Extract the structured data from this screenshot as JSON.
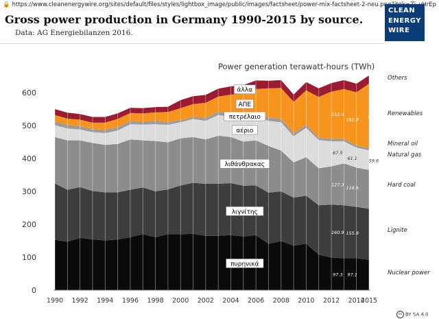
{
  "url": "https://www.cleanenergywire.org/sites/default/files/styles/lightbox_image/public/images/factsheet/power-mix-factsheet-2-neu.png?itok=Zj_yHrEp",
  "title": "Gross power production in Germany 1990-2015 by source.",
  "subtitle": "Data: AG Energiebilanzen 2016.",
  "logo": [
    "CLEAN",
    "ENERGY",
    "WIRE"
  ],
  "license": "BY SA 4.0",
  "license_icon": "cc",
  "chart_data": {
    "type": "area",
    "stacked": true,
    "chart_title": "Power generation terawatt-hours (TWh)",
    "x": [
      1990,
      1991,
      1992,
      1993,
      1994,
      1995,
      1996,
      1997,
      1998,
      1999,
      2000,
      2001,
      2002,
      2003,
      2004,
      2005,
      2006,
      2007,
      2008,
      2009,
      2010,
      2011,
      2012,
      2013,
      2014,
      2015
    ],
    "x_ticks": [
      "1990",
      "1992",
      "1994",
      "1996",
      "1998",
      "2000",
      "2002",
      "2004",
      "2006",
      "2008",
      "2010",
      "2012",
      "2014",
      "2015"
    ],
    "y_ticks": [
      "0",
      "100",
      "200",
      "300",
      "400",
      "500",
      "600"
    ],
    "ylim": [
      0,
      650
    ],
    "grid": false,
    "series": [
      {
        "name": "Nuclear power",
        "overlay_label": "πυρηνικά",
        "color": "#0a0a0a",
        "values": [
          153,
          147,
          159,
          154,
          151,
          154,
          161,
          170,
          161,
          170,
          170,
          171,
          165,
          165,
          167,
          163,
          167,
          141,
          149,
          135,
          141,
          108,
          99,
          97,
          97,
          92
        ]
      },
      {
        "name": "Lignite",
        "overlay_label": "λιγνίτης",
        "color": "#3d3d3d",
        "values": [
          171,
          158,
          154,
          147,
          146,
          143,
          144,
          142,
          139,
          136,
          148,
          155,
          158,
          158,
          158,
          154,
          151,
          155,
          151,
          146,
          146,
          150,
          161,
          161,
          156,
          155
        ]
      },
      {
        "name": "Hard coal",
        "overlay_label": "λιθάνθρακας",
        "color": "#8c8c8c",
        "values": [
          141,
          150,
          142,
          146,
          144,
          147,
          153,
          143,
          153,
          143,
          143,
          139,
          135,
          146,
          140,
          134,
          137,
          142,
          124,
          107,
          117,
          112,
          116,
          127,
          119,
          118
        ]
      },
      {
        "name": "Natural gas",
        "overlay_label": "αέριο",
        "color": "#dcdcdc",
        "values": [
          36,
          36,
          33,
          33,
          36,
          41,
          46,
          48,
          51,
          53,
          49,
          55,
          56,
          63,
          61,
          71,
          73,
          76,
          86,
          79,
          89,
          86,
          76,
          67,
          61,
          60
        ]
      },
      {
        "name": "Mineral oil",
        "overlay_label": "πετρέλαιο",
        "color": "#9c9c9c",
        "values": [
          11,
          11,
          10,
          9,
          10,
          10,
          10,
          9,
          10,
          9,
          6,
          6,
          9,
          10,
          11,
          12,
          11,
          10,
          10,
          10,
          9,
          7,
          8,
          7,
          6,
          6
        ]
      },
      {
        "name": "Renewables",
        "overlay_label": "ΑΠΕ",
        "color": "#f7941d",
        "values": [
          20,
          19,
          20,
          20,
          22,
          25,
          24,
          25,
          26,
          30,
          37,
          39,
          46,
          46,
          57,
          63,
          72,
          89,
          94,
          95,
          105,
          124,
          143,
          152,
          162,
          196
        ]
      },
      {
        "name": "Others",
        "overlay_label": "άλλα",
        "color": "#9b1b30",
        "values": [
          18,
          18,
          17,
          17,
          17,
          17,
          16,
          16,
          16,
          16,
          24,
          24,
          24,
          24,
          25,
          26,
          26,
          23,
          24,
          22,
          25,
          26,
          26,
          27,
          26,
          25
        ]
      }
    ],
    "annotations": [
      {
        "series": "Nuclear power",
        "values": [
          "97.3",
          "97.1",
          "91.8"
        ],
        "years": [
          2013,
          2014,
          2015
        ]
      },
      {
        "series": "Lignite",
        "values": [
          "160.9",
          "155.8",
          "155"
        ],
        "years": [
          2013,
          2014,
          2015
        ]
      },
      {
        "series": "Hard coal",
        "values": [
          "127.3",
          "118.6",
          "118"
        ],
        "years": [
          2013,
          2014,
          2015
        ]
      },
      {
        "series": "Natural gas",
        "values": [
          "67.5",
          "61.1",
          "59.6"
        ],
        "years": [
          2013,
          2014,
          2015
        ]
      },
      {
        "series": "Renewables",
        "values": [
          "152.4",
          "162.5",
          "195.9"
        ],
        "years": [
          2013,
          2014,
          2015
        ]
      }
    ],
    "legend_placement": "right",
    "colors": {
      "nuclear": "#0a0a0a",
      "lignite": "#3d3d3d",
      "hard_coal": "#8c8c8c",
      "gas": "#dcdcdc",
      "oil": "#9c9c9c",
      "renewables": "#f7941d",
      "others": "#9b1b30"
    }
  }
}
